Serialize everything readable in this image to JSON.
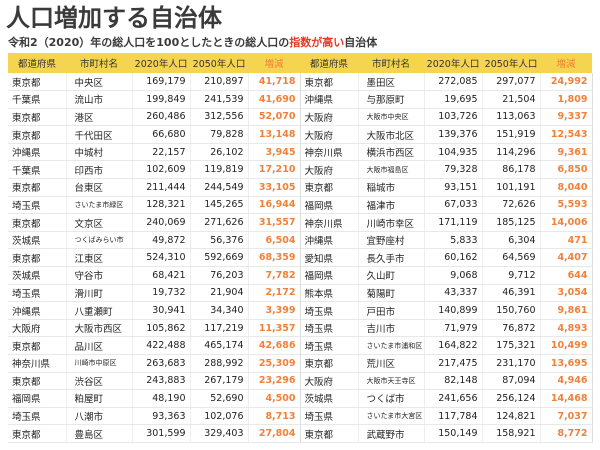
{
  "title": "人口増加する自治体",
  "subtitle": {
    "prefix": "令和2（2020）年の総人口を100としたときの総人口の",
    "highlight": "指数が高い",
    "suffix": "自治体"
  },
  "colors": {
    "header_bg": "#f5d54f",
    "increase_text": "#f0813a",
    "highlight_text": "#e53a2a"
  },
  "table": {
    "headers": [
      "都道府県",
      "市町村名",
      "2020年人口",
      "2050年人口",
      "増減",
      "都道府県",
      "市町村名",
      "2020年人口",
      "2050年人口",
      "増減"
    ],
    "left_rows": [
      {
        "pref": "東京都",
        "city": "中央区",
        "y2020": "169,179",
        "y2050": "210,897",
        "diff": "41,718",
        "small": false
      },
      {
        "pref": "千葉県",
        "city": "流山市",
        "y2020": "199,849",
        "y2050": "241,539",
        "diff": "41,690",
        "small": false
      },
      {
        "pref": "東京都",
        "city": "港区",
        "y2020": "260,486",
        "y2050": "312,556",
        "diff": "52,070",
        "small": false
      },
      {
        "pref": "東京都",
        "city": "千代田区",
        "y2020": "66,680",
        "y2050": "79,828",
        "diff": "13,148",
        "small": false
      },
      {
        "pref": "沖縄県",
        "city": "中城村",
        "y2020": "22,157",
        "y2050": "26,102",
        "diff": "3,945",
        "small": false
      },
      {
        "pref": "千葉県",
        "city": "印西市",
        "y2020": "102,609",
        "y2050": "119,819",
        "diff": "17,210",
        "small": false
      },
      {
        "pref": "東京都",
        "city": "台東区",
        "y2020": "211,444",
        "y2050": "244,549",
        "diff": "33,105",
        "small": false
      },
      {
        "pref": "埼玉県",
        "city": "さいたま市緑区",
        "y2020": "128,321",
        "y2050": "145,265",
        "diff": "16,944",
        "small": true
      },
      {
        "pref": "東京都",
        "city": "文京区",
        "y2020": "240,069",
        "y2050": "271,626",
        "diff": "31,557",
        "small": false
      },
      {
        "pref": "茨城県",
        "city": "つくばみらい市",
        "y2020": "49,872",
        "y2050": "56,376",
        "diff": "6,504",
        "small": true
      },
      {
        "pref": "東京都",
        "city": "江東区",
        "y2020": "524,310",
        "y2050": "592,669",
        "diff": "68,359",
        "small": false
      },
      {
        "pref": "茨城県",
        "city": "守谷市",
        "y2020": "68,421",
        "y2050": "76,203",
        "diff": "7,782",
        "small": false
      },
      {
        "pref": "埼玉県",
        "city": "滑川町",
        "y2020": "19,732",
        "y2050": "21,904",
        "diff": "2,172",
        "small": false
      },
      {
        "pref": "沖縄県",
        "city": "八重瀬町",
        "y2020": "30,941",
        "y2050": "34,340",
        "diff": "3,399",
        "small": false
      },
      {
        "pref": "大阪府",
        "city": "大阪市西区",
        "y2020": "105,862",
        "y2050": "117,219",
        "diff": "11,357",
        "small": false
      },
      {
        "pref": "東京都",
        "city": "品川区",
        "y2020": "422,488",
        "y2050": "465,174",
        "diff": "42,686",
        "small": false
      },
      {
        "pref": "神奈川県",
        "city": "川崎市中原区",
        "y2020": "263,683",
        "y2050": "288,992",
        "diff": "25,309",
        "small": true
      },
      {
        "pref": "東京都",
        "city": "渋谷区",
        "y2020": "243,883",
        "y2050": "267,179",
        "diff": "23,296",
        "small": false
      },
      {
        "pref": "福岡県",
        "city": "粕屋町",
        "y2020": "48,190",
        "y2050": "52,690",
        "diff": "4,500",
        "small": false
      },
      {
        "pref": "埼玉県",
        "city": "八潮市",
        "y2020": "93,363",
        "y2050": "102,076",
        "diff": "8,713",
        "small": false
      },
      {
        "pref": "東京都",
        "city": "豊島区",
        "y2020": "301,599",
        "y2050": "329,403",
        "diff": "27,804",
        "small": false
      }
    ],
    "right_rows": [
      {
        "pref": "東京都",
        "city": "墨田区",
        "y2020": "272,085",
        "y2050": "297,077",
        "diff": "24,992",
        "small": false
      },
      {
        "pref": "沖縄県",
        "city": "与那原町",
        "y2020": "19,695",
        "y2050": "21,504",
        "diff": "1,809",
        "small": false
      },
      {
        "pref": "大阪府",
        "city": "大阪市中央区",
        "y2020": "103,726",
        "y2050": "113,063",
        "diff": "9,337",
        "small": true
      },
      {
        "pref": "大阪府",
        "city": "大阪市北区",
        "y2020": "139,376",
        "y2050": "151,919",
        "diff": "12,543",
        "small": false
      },
      {
        "pref": "神奈川県",
        "city": "横浜市西区",
        "y2020": "104,935",
        "y2050": "114,296",
        "diff": "9,361",
        "small": false
      },
      {
        "pref": "大阪府",
        "city": "大阪市福島区",
        "y2020": "79,328",
        "y2050": "86,178",
        "diff": "6,850",
        "small": true
      },
      {
        "pref": "東京都",
        "city": "稲城市",
        "y2020": "93,151",
        "y2050": "101,191",
        "diff": "8,040",
        "small": false
      },
      {
        "pref": "福岡県",
        "city": "福津市",
        "y2020": "67,033",
        "y2050": "72,626",
        "diff": "5,593",
        "small": false
      },
      {
        "pref": "神奈川県",
        "city": "川崎市幸区",
        "y2020": "171,119",
        "y2050": "185,125",
        "diff": "14,006",
        "small": false
      },
      {
        "pref": "沖縄県",
        "city": "宜野座村",
        "y2020": "5,833",
        "y2050": "6,304",
        "diff": "471",
        "small": false
      },
      {
        "pref": "愛知県",
        "city": "長久手市",
        "y2020": "60,162",
        "y2050": "64,569",
        "diff": "4,407",
        "small": false
      },
      {
        "pref": "福岡県",
        "city": "久山町",
        "y2020": "9,068",
        "y2050": "9,712",
        "diff": "644",
        "small": false
      },
      {
        "pref": "熊本県",
        "city": "菊陽町",
        "y2020": "43,337",
        "y2050": "46,391",
        "diff": "3,054",
        "small": false
      },
      {
        "pref": "埼玉県",
        "city": "戸田市",
        "y2020": "140,899",
        "y2050": "150,760",
        "diff": "9,861",
        "small": false
      },
      {
        "pref": "埼玉県",
        "city": "吉川市",
        "y2020": "71,979",
        "y2050": "76,872",
        "diff": "4,893",
        "small": false
      },
      {
        "pref": "埼玉県",
        "city": "さいたま市浦和区",
        "y2020": "164,822",
        "y2050": "175,321",
        "diff": "10,499",
        "small": true
      },
      {
        "pref": "東京都",
        "city": "荒川区",
        "y2020": "217,475",
        "y2050": "231,170",
        "diff": "13,695",
        "small": false
      },
      {
        "pref": "大阪府",
        "city": "大阪市天王寺区",
        "y2020": "82,148",
        "y2050": "87,094",
        "diff": "4,946",
        "small": true
      },
      {
        "pref": "茨城県",
        "city": "つくば市",
        "y2020": "241,656",
        "y2050": "256,124",
        "diff": "14,468",
        "small": false
      },
      {
        "pref": "埼玉県",
        "city": "さいたま市大宮区",
        "y2020": "117,784",
        "y2050": "124,821",
        "diff": "7,037",
        "small": true
      },
      {
        "pref": "東京都",
        "city": "武蔵野市",
        "y2020": "150,149",
        "y2050": "158,921",
        "diff": "8,772",
        "small": false
      }
    ]
  }
}
